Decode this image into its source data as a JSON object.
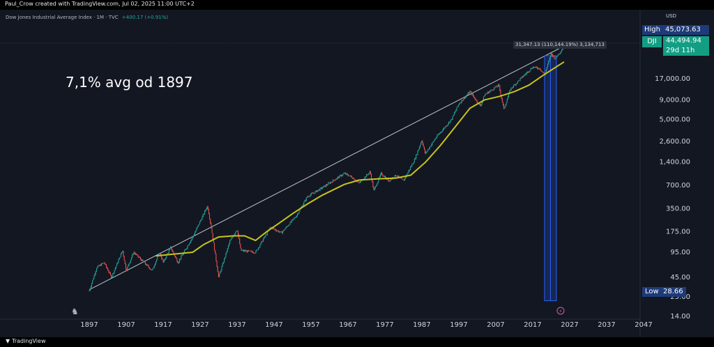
{
  "header": {
    "text": "Paul_Crow created with TradingView.com, Jul 02, 2025 11:00 UTC+2"
  },
  "legend": {
    "symbol": "Dow Jones Industrial Average Index · 1M · TVC",
    "change": "+400.17 (+0.91%)"
  },
  "annotation": {
    "text": "7,1% avg od 1897"
  },
  "measure_label": "31,347.13 (110,144.19%) 3,134,713",
  "price_axis": {
    "currency": "USD",
    "ticks": [
      "17,000.00",
      "9,000.00",
      "5,000.00",
      "2,600.00",
      "1,400.00",
      "700.00",
      "350.00",
      "175.00",
      "95.00",
      "45.00",
      "25.00",
      "14.00"
    ],
    "high_label": "High",
    "high_value": "45,073.63",
    "symbol_tag": "DJI",
    "last_value": "44,494.94",
    "countdown": "29d 11h",
    "low_label": "Low",
    "low_value": "28.66"
  },
  "footer": {
    "brand": "TradingView"
  },
  "colors": {
    "background": "#131722",
    "up": "#26a69a",
    "down": "#ef5350",
    "ma": "#c8c41c",
    "trendline": "#c0c4cc",
    "range": "#2962ff",
    "badge_blue": "#1e3a78",
    "badge_green": "#139e84"
  },
  "icons": {
    "logo": "tradingview-logo-icon",
    "watermark": "dino-icon",
    "event": "lightning-icon"
  },
  "chart_data": {
    "type": "candlestick",
    "x_axis": {
      "ticks": [
        "1897",
        "1907",
        "1917",
        "1927",
        "1937",
        "1947",
        "1957",
        "1967",
        "1977",
        "1987",
        "1997",
        "2007",
        "2017",
        "2027",
        "2037",
        "2047"
      ]
    },
    "y_scale": "log",
    "ylim": [
      14,
      60000
    ],
    "price_series": {
      "x": [
        1897,
        1899,
        1901,
        1903,
        1906,
        1907,
        1909,
        1914,
        1916,
        1917,
        1919,
        1921,
        1925,
        1929,
        1930,
        1932,
        1935,
        1937,
        1938,
        1942,
        1946,
        1949,
        1953,
        1956,
        1960,
        1966,
        1968,
        1970,
        1973,
        1974,
        1976,
        1978,
        1980,
        1982,
        1985,
        1987,
        1987.9,
        1991,
        1995,
        1997,
        2000,
        2002.8,
        2004,
        2007.8,
        2009.2,
        2011,
        2014,
        2017,
        2018.9,
        2020.2,
        2022,
        2023,
        2024.5,
        2025.5
      ],
      "y": [
        30,
        60,
        70,
        45,
        100,
        55,
        95,
        55,
        95,
        70,
        110,
        70,
        150,
        380,
        200,
        45,
        130,
        190,
        100,
        95,
        200,
        170,
        280,
        500,
        650,
        1000,
        900,
        750,
        1050,
        600,
        1000,
        800,
        950,
        800,
        1500,
        2700,
        1800,
        3000,
        5000,
        8000,
        11500,
        7500,
        10500,
        14000,
        6800,
        12500,
        17500,
        24000,
        23000,
        19000,
        36000,
        31000,
        38000,
        44500
      ]
    },
    "moving_average": {
      "x": [
        1915,
        1920,
        1925,
        1928,
        1932,
        1936,
        1939,
        1942,
        1945,
        1948,
        1952,
        1956,
        1960,
        1966,
        1970,
        1975,
        1980,
        1984,
        1988,
        1992,
        1996,
        2000,
        2004,
        2008,
        2012,
        2016,
        2020,
        2025.5
      ],
      "y": [
        85,
        90,
        95,
        120,
        150,
        155,
        155,
        135,
        175,
        220,
        300,
        400,
        520,
        720,
        820,
        850,
        870,
        950,
        1400,
        2300,
        4000,
        7000,
        9000,
        10000,
        11500,
        14000,
        19000,
        28000
      ]
    },
    "trendline": {
      "x": [
        1897,
        2025.5
      ],
      "y": [
        31,
        45000
      ]
    },
    "high": 45073.63,
    "low": 28.66,
    "last": 44494.94
  }
}
